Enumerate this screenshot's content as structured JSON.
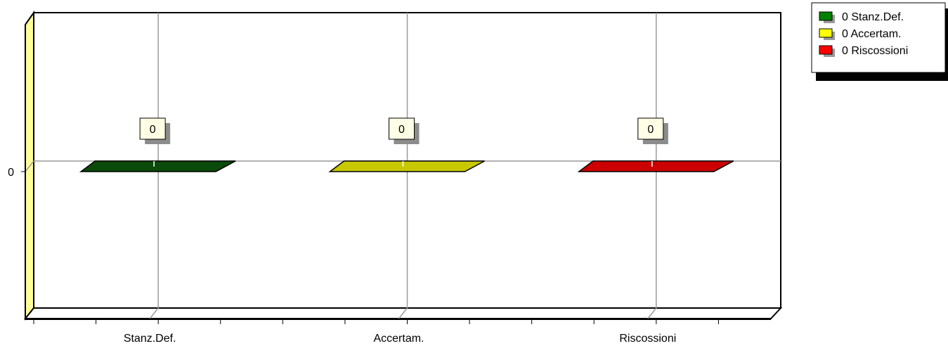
{
  "chart_data": {
    "type": "bar",
    "categories": [
      "Stanz.Def.",
      "Accertam.",
      "Riscossioni"
    ],
    "values": [
      0,
      0,
      0
    ],
    "data_labels": [
      "0",
      "0",
      "0"
    ],
    "y_tick_labels": [
      "0"
    ],
    "colors": [
      "#0a4a0a",
      "#c8c800",
      "#cc0000"
    ],
    "legend": {
      "placement": "top-right",
      "entries": [
        {
          "label": "0 Stanz.Def.",
          "color": "#008000"
        },
        {
          "label": "0 Accertam.",
          "color": "#ffff00"
        },
        {
          "label": "0 Riscossioni",
          "color": "#ff0000"
        }
      ]
    },
    "grid": true,
    "style": "3d"
  }
}
